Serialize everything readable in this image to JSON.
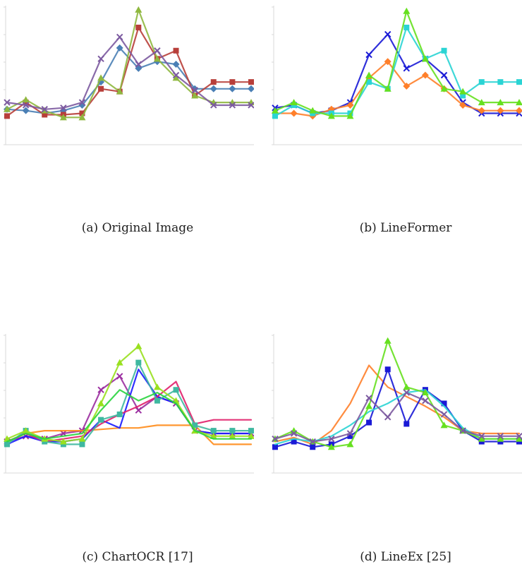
{
  "captions": {
    "a": "(a) Original Image",
    "b": "(b) LineFormer",
    "c": "(c) ChartOCR [17]",
    "d": "(d) LineEx [25]"
  },
  "chart_data": [
    {
      "type": "line",
      "panel": "a",
      "caption": "(a) Original Image",
      "x": [
        0,
        1,
        2,
        3,
        4,
        5,
        6,
        7,
        8,
        9,
        10,
        11,
        12,
        13
      ],
      "ylim": [
        0,
        100
      ],
      "grid": false,
      "series": [
        {
          "color": "#4a7fb5",
          "marker": "diamond",
          "values": [
            25,
            24,
            22,
            24,
            28,
            45,
            70,
            55,
            60,
            58,
            40,
            40,
            40,
            40
          ]
        },
        {
          "color": "#b83f3a",
          "marker": "square",
          "values": [
            20,
            30,
            21,
            21,
            22,
            40,
            38,
            85,
            62,
            68,
            35,
            45,
            45,
            45
          ]
        },
        {
          "color": "#8fb83f",
          "marker": "triangle",
          "values": [
            25,
            32,
            24,
            19,
            19,
            48,
            38,
            98,
            62,
            48,
            35,
            30,
            30,
            30
          ]
        },
        {
          "color": "#7c5aa0",
          "marker": "x",
          "values": [
            30,
            28,
            25,
            26,
            30,
            62,
            78,
            58,
            68,
            50,
            39,
            28,
            28,
            28
          ]
        }
      ]
    },
    {
      "type": "line",
      "panel": "b",
      "caption": "(b) LineFormer",
      "x": [
        0,
        1,
        2,
        3,
        4,
        5,
        6,
        7,
        8,
        9,
        10,
        11,
        12,
        13
      ],
      "ylim": [
        0,
        100
      ],
      "grid": false,
      "series": [
        {
          "color": "#1a1ad6",
          "marker": "x",
          "values": [
            26,
            28,
            22,
            24,
            30,
            65,
            80,
            55,
            62,
            50,
            30,
            22,
            22,
            22
          ]
        },
        {
          "color": "#ff7f2a",
          "marker": "diamond",
          "values": [
            22,
            22,
            20,
            25,
            28,
            48,
            60,
            42,
            50,
            40,
            28,
            24,
            24,
            24
          ]
        },
        {
          "color": "#2ad4d4",
          "marker": "square",
          "values": [
            20,
            28,
            22,
            22,
            22,
            45,
            40,
            85,
            62,
            68,
            35,
            45,
            45,
            45
          ]
        },
        {
          "color": "#66e01f",
          "marker": "triangle",
          "values": [
            24,
            30,
            24,
            20,
            20,
            50,
            40,
            97,
            62,
            40,
            38,
            30,
            30,
            30
          ]
        }
      ]
    },
    {
      "type": "line",
      "panel": "c",
      "caption": "(c) ChartOCR [17]",
      "x": [
        0,
        1,
        2,
        3,
        4,
        5,
        6,
        7,
        8,
        9,
        10,
        11,
        12,
        13
      ],
      "ylim": [
        0,
        100
      ],
      "grid": false,
      "series": [
        {
          "color": "#9b2fa0",
          "marker": "x",
          "values": [
            22,
            26,
            24,
            28,
            30,
            60,
            70,
            45,
            55,
            50,
            30,
            28,
            28,
            28
          ]
        },
        {
          "color": "#ff8c1a",
          "marker": "none",
          "values": [
            22,
            28,
            30,
            30,
            30,
            31,
            32,
            32,
            34,
            34,
            34,
            20,
            20,
            20
          ]
        },
        {
          "color": "#1a1aff",
          "marker": "none",
          "values": [
            20,
            26,
            22,
            22,
            24,
            38,
            32,
            75,
            55,
            50,
            30,
            28,
            28,
            28
          ]
        },
        {
          "color": "#e01f6a",
          "marker": "none",
          "values": [
            22,
            28,
            22,
            24,
            26,
            35,
            42,
            48,
            55,
            66,
            35,
            38,
            38,
            38
          ]
        },
        {
          "color": "#3fb8a0",
          "marker": "square",
          "values": [
            20,
            30,
            22,
            20,
            20,
            38,
            42,
            80,
            52,
            60,
            34,
            30,
            30,
            30
          ]
        },
        {
          "color": "#99e01f",
          "marker": "triangle",
          "values": [
            24,
            30,
            24,
            22,
            24,
            50,
            80,
            92,
            62,
            52,
            30,
            26,
            26,
            26
          ]
        },
        {
          "color": "#2ad43f",
          "marker": "none",
          "values": [
            22,
            28,
            24,
            26,
            28,
            45,
            60,
            52,
            58,
            50,
            30,
            24,
            24,
            24
          ]
        }
      ]
    },
    {
      "type": "line",
      "panel": "d",
      "caption": "(d) LineEx [25]",
      "x": [
        0,
        1,
        2,
        3,
        4,
        5,
        6,
        7,
        8,
        9,
        10,
        11,
        12,
        13
      ],
      "ylim": [
        0,
        100
      ],
      "grid": false,
      "series": [
        {
          "color": "#ff7f2a",
          "marker": "none",
          "values": [
            22,
            25,
            20,
            30,
            50,
            78,
            62,
            55,
            48,
            40,
            30,
            28,
            28,
            28
          ]
        },
        {
          "color": "#1a1ad6",
          "marker": "square",
          "values": [
            18,
            22,
            18,
            20,
            26,
            36,
            75,
            35,
            60,
            50,
            30,
            22,
            22,
            22
          ]
        },
        {
          "color": "#2ad4d4",
          "marker": "none",
          "values": [
            20,
            24,
            22,
            26,
            34,
            44,
            50,
            58,
            60,
            48,
            32,
            24,
            24,
            24
          ]
        },
        {
          "color": "#66e01f",
          "marker": "triangle",
          "values": [
            24,
            30,
            22,
            18,
            20,
            48,
            96,
            62,
            58,
            34,
            30,
            24,
            24,
            24
          ]
        },
        {
          "color": "#7c5aa0",
          "marker": "x",
          "values": [
            24,
            28,
            22,
            24,
            28,
            54,
            40,
            58,
            52,
            42,
            30,
            26,
            26,
            26
          ]
        }
      ]
    }
  ]
}
